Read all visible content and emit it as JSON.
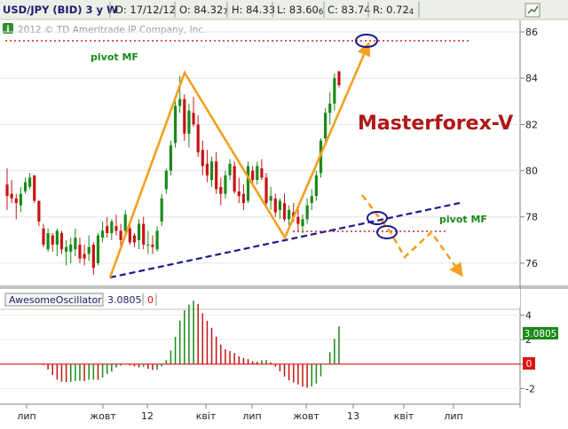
{
  "header": {
    "symbol": "USD/JPY (BID) 3 y W",
    "date": "D: 17/12/12",
    "open": "O: 84.32",
    "open_small": "7",
    "high": "H: 84.33",
    "low": "L: 83.60",
    "low_small": "6",
    "close": "C: 83.74",
    "range": "R: 0.72",
    "range_small": "4"
  },
  "watermark": "2012 © TD Ameritrade IP Company, Inc.",
  "annotations": {
    "brand": "Masterforex-V",
    "pivot_top": "pivot MF",
    "pivot_right": "pivot MF"
  },
  "oscillator": {
    "name": "AwesomeOscillator",
    "value": "3.0805",
    "zero": "0",
    "value_badge": "3.0805",
    "zero_badge": "0"
  },
  "colors": {
    "bull": "#1a8a1a",
    "bear": "#c81414",
    "orange": "#f4a020",
    "trendline": "#1a1a8c",
    "pivot": "#d42020",
    "brand": "#b01818",
    "pivot_text": "#1a8a1a",
    "ao_badge": "#1a8a1a",
    "zero_badge": "#e01010"
  },
  "chart_data": [
    {
      "type": "candlestick",
      "title": "USD/JPY (BID) 3 y W",
      "x_tick_labels": [
        "лип",
        "жовт",
        "12",
        "квіт",
        "лип",
        "жовт",
        "13",
        "квіт",
        "лип"
      ],
      "y_ticks": [
        76,
        78,
        80,
        82,
        84,
        86
      ],
      "ylim": [
        75.0,
        86.5
      ],
      "ohlc": [
        [
          79.4,
          80.1,
          78.3,
          78.9
        ],
        [
          79.0,
          79.6,
          78.6,
          78.8
        ],
        [
          78.8,
          79.0,
          77.9,
          78.6
        ],
        [
          78.5,
          79.3,
          78.2,
          79.0
        ],
        [
          79.1,
          79.7,
          79.0,
          79.5
        ],
        [
          79.3,
          79.9,
          79.2,
          79.7
        ],
        [
          79.8,
          79.8,
          78.6,
          78.7
        ],
        [
          78.7,
          78.7,
          77.6,
          77.8
        ],
        [
          77.5,
          77.7,
          76.7,
          76.8
        ],
        [
          76.6,
          77.5,
          76.5,
          77.3
        ],
        [
          77.2,
          77.3,
          76.5,
          76.8
        ],
        [
          76.8,
          77.5,
          76.3,
          77.4
        ],
        [
          77.3,
          77.4,
          76.4,
          76.6
        ],
        [
          76.5,
          77.0,
          75.9,
          76.7
        ],
        [
          76.5,
          77.1,
          76.0,
          76.8
        ],
        [
          76.6,
          77.5,
          76.3,
          77.1
        ],
        [
          76.8,
          77.1,
          76.0,
          76.2
        ],
        [
          76.4,
          76.8,
          75.9,
          76.2
        ],
        [
          76.4,
          77.2,
          76.1,
          76.7
        ],
        [
          76.8,
          76.9,
          75.5,
          75.8
        ],
        [
          76.0,
          77.3,
          75.9,
          77.2
        ],
        [
          77.1,
          77.8,
          76.9,
          77.4
        ],
        [
          77.6,
          78.0,
          77.1,
          77.3
        ],
        [
          77.3,
          77.9,
          77.0,
          77.8
        ],
        [
          77.6,
          78.1,
          77.2,
          77.4
        ],
        [
          77.4,
          77.7,
          76.6,
          77.0
        ],
        [
          77.4,
          78.3,
          77.1,
          78.1
        ],
        [
          77.5,
          77.8,
          76.8,
          76.9
        ],
        [
          77.2,
          77.3,
          76.7,
          76.9
        ],
        [
          77.0,
          77.9,
          76.6,
          77.7
        ],
        [
          77.7,
          78.0,
          76.6,
          76.8
        ],
        [
          76.8,
          77.4,
          76.4,
          76.8
        ],
        [
          76.8,
          77.2,
          76.4,
          76.7
        ],
        [
          76.6,
          77.6,
          76.5,
          77.4
        ],
        [
          77.8,
          79.0,
          77.6,
          78.8
        ],
        [
          79.2,
          80.1,
          79.0,
          80.0
        ],
        [
          80.0,
          81.3,
          79.8,
          81.1
        ],
        [
          81.2,
          83.0,
          81.0,
          82.8
        ],
        [
          82.8,
          84.1,
          82.5,
          83.1
        ],
        [
          83.1,
          83.3,
          81.3,
          81.6
        ],
        [
          81.6,
          82.9,
          81.0,
          82.6
        ],
        [
          82.5,
          83.2,
          81.9,
          82.0
        ],
        [
          82.0,
          82.4,
          80.6,
          80.8
        ],
        [
          80.9,
          81.3,
          79.8,
          80.2
        ],
        [
          80.3,
          80.9,
          79.5,
          79.8
        ],
        [
          79.6,
          80.6,
          79.3,
          80.4
        ],
        [
          80.4,
          80.8,
          79.0,
          79.2
        ],
        [
          79.3,
          79.7,
          78.5,
          79.0
        ],
        [
          79.0,
          80.0,
          78.8,
          79.8
        ],
        [
          79.8,
          80.5,
          79.6,
          80.3
        ],
        [
          80.2,
          80.4,
          79.0,
          79.1
        ],
        [
          79.1,
          79.7,
          78.6,
          78.9
        ],
        [
          79.0,
          79.4,
          78.3,
          78.6
        ],
        [
          78.7,
          80.4,
          78.6,
          80.2
        ],
        [
          80.0,
          80.2,
          79.3,
          79.6
        ],
        [
          79.6,
          80.4,
          79.4,
          80.2
        ],
        [
          80.1,
          80.5,
          79.6,
          79.7
        ],
        [
          79.7,
          79.9,
          78.5,
          78.6
        ],
        [
          78.7,
          79.3,
          78.3,
          78.9
        ],
        [
          78.8,
          79.0,
          78.0,
          78.2
        ],
        [
          78.3,
          78.8,
          77.9,
          78.7
        ],
        [
          78.6,
          79.0,
          77.8,
          77.9
        ],
        [
          77.9,
          78.5,
          77.6,
          78.3
        ],
        [
          78.2,
          78.6,
          77.8,
          78.0
        ],
        [
          78.0,
          78.4,
          77.4,
          77.7
        ],
        [
          77.6,
          78.1,
          77.3,
          77.9
        ],
        [
          77.9,
          78.8,
          77.7,
          78.5
        ],
        [
          78.6,
          79.2,
          78.3,
          78.9
        ],
        [
          78.9,
          80.0,
          78.7,
          79.8
        ],
        [
          79.9,
          81.4,
          79.7,
          81.3
        ],
        [
          81.4,
          82.7,
          81.2,
          82.5
        ],
        [
          82.5,
          83.4,
          82.0,
          82.9
        ],
        [
          82.9,
          84.2,
          82.6,
          84.0
        ],
        [
          84.3,
          84.3,
          83.6,
          83.7
        ]
      ]
    },
    {
      "type": "bar",
      "title": "AwesomeOscillator",
      "y_ticks": [
        -2,
        0,
        2,
        4
      ],
      "ylim": [
        -3.2,
        4.4
      ],
      "current": 3.0805
    }
  ]
}
